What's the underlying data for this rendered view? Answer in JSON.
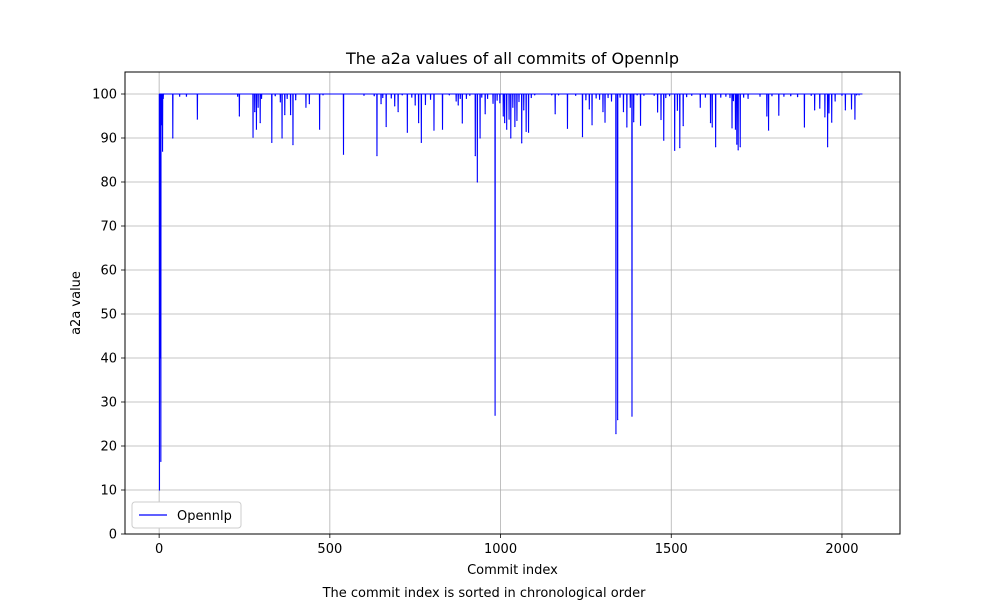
{
  "chart_data": {
    "type": "line",
    "title": "The a2a values of all commits of Opennlp",
    "xlabel": "Commit index",
    "ylabel": "a2a value",
    "caption": "The commit index is sorted in chronological order",
    "xlim": [
      -100,
      2170
    ],
    "ylim": [
      0,
      105
    ],
    "xticks": [
      0,
      500,
      1000,
      1500,
      2000
    ],
    "yticks": [
      0,
      10,
      20,
      30,
      40,
      50,
      60,
      70,
      80,
      90,
      100
    ],
    "grid": true,
    "legend_position": "lower-left",
    "series": [
      {
        "name": "Opennlp",
        "color": "#0000ff",
        "baseline": 100,
        "x_end": 2060,
        "dips": [
          [
            1,
            10
          ],
          [
            3,
            40
          ],
          [
            5,
            16.5
          ],
          [
            7,
            93
          ],
          [
            10,
            87
          ],
          [
            12,
            99
          ],
          [
            14,
            100
          ],
          [
            40,
            90
          ],
          [
            60,
            99.5
          ],
          [
            80,
            99.5
          ],
          [
            112,
            94.3
          ],
          [
            230,
            99.5
          ],
          [
            235,
            95
          ],
          [
            275,
            90.2
          ],
          [
            280,
            96
          ],
          [
            285,
            92
          ],
          [
            290,
            97
          ],
          [
            296,
            93.5
          ],
          [
            300,
            99
          ],
          [
            330,
            89
          ],
          [
            340,
            99.6
          ],
          [
            355,
            98.2
          ],
          [
            360,
            90
          ],
          [
            368,
            95.3
          ],
          [
            375,
            99
          ],
          [
            385,
            95.3
          ],
          [
            392,
            88.5
          ],
          [
            400,
            98.7
          ],
          [
            430,
            97
          ],
          [
            440,
            97.8
          ],
          [
            470,
            92
          ],
          [
            480,
            99.8
          ],
          [
            540,
            86.3
          ],
          [
            600,
            99.7
          ],
          [
            630,
            99.6
          ],
          [
            638,
            86
          ],
          [
            650,
            97.8
          ],
          [
            655,
            99.2
          ],
          [
            665,
            92.6
          ],
          [
            680,
            99.1
          ],
          [
            690,
            97.3
          ],
          [
            700,
            96
          ],
          [
            712,
            99.8
          ],
          [
            727,
            91.3
          ],
          [
            740,
            99.3
          ],
          [
            750,
            97.5
          ],
          [
            760,
            93.5
          ],
          [
            768,
            89
          ],
          [
            780,
            97.6
          ],
          [
            795,
            98.8
          ],
          [
            805,
            91.8
          ],
          [
            830,
            92
          ],
          [
            850,
            99.8
          ],
          [
            870,
            98.4
          ],
          [
            876,
            97.5
          ],
          [
            882,
            99
          ],
          [
            888,
            93.4
          ],
          [
            900,
            99
          ],
          [
            910,
            99.7
          ],
          [
            926,
            86
          ],
          [
            932,
            80
          ],
          [
            940,
            90
          ],
          [
            945,
            99.3
          ],
          [
            955,
            95.5
          ],
          [
            962,
            99
          ],
          [
            978,
            97.9
          ],
          [
            984,
            27
          ],
          [
            990,
            98.6
          ],
          [
            998,
            98
          ],
          [
            1008,
            95
          ],
          [
            1012,
            93.5
          ],
          [
            1018,
            92
          ],
          [
            1025,
            94.3
          ],
          [
            1030,
            90
          ],
          [
            1036,
            97
          ],
          [
            1042,
            92.6
          ],
          [
            1048,
            94
          ],
          [
            1054,
            98.3
          ],
          [
            1062,
            88.9
          ],
          [
            1068,
            96.4
          ],
          [
            1075,
            91.5
          ],
          [
            1082,
            91.3
          ],
          [
            1090,
            99.2
          ],
          [
            1100,
            99.8
          ],
          [
            1150,
            99.8
          ],
          [
            1160,
            95.5
          ],
          [
            1170,
            99.8
          ],
          [
            1196,
            92.2
          ],
          [
            1220,
            99.7
          ],
          [
            1240,
            90.3
          ],
          [
            1250,
            98.7
          ],
          [
            1260,
            96.6
          ],
          [
            1268,
            93
          ],
          [
            1280,
            99.1
          ],
          [
            1290,
            98.8
          ],
          [
            1300,
            96
          ],
          [
            1306,
            93.6
          ],
          [
            1315,
            99.2
          ],
          [
            1325,
            98.4
          ],
          [
            1338,
            22.8
          ],
          [
            1343,
            26
          ],
          [
            1350,
            99.3
          ],
          [
            1360,
            96
          ],
          [
            1370,
            92.5
          ],
          [
            1380,
            97
          ],
          [
            1385,
            26.8
          ],
          [
            1390,
            93.7
          ],
          [
            1400,
            99.8
          ],
          [
            1410,
            92.9
          ],
          [
            1420,
            99.7
          ],
          [
            1450,
            99.7
          ],
          [
            1460,
            95.9
          ],
          [
            1470,
            94.2
          ],
          [
            1478,
            89.5
          ],
          [
            1484,
            99.2
          ],
          [
            1495,
            99.6
          ],
          [
            1510,
            87.2
          ],
          [
            1518,
            96.3
          ],
          [
            1525,
            87.8
          ],
          [
            1535,
            92.8
          ],
          [
            1545,
            99.4
          ],
          [
            1560,
            99.7
          ],
          [
            1585,
            97
          ],
          [
            1600,
            99.3
          ],
          [
            1615,
            93.5
          ],
          [
            1620,
            92.5
          ],
          [
            1630,
            88
          ],
          [
            1645,
            99.3
          ],
          [
            1660,
            99.5
          ],
          [
            1672,
            99.2
          ],
          [
            1678,
            92.3
          ],
          [
            1682,
            98.5
          ],
          [
            1688,
            92
          ],
          [
            1692,
            88.6
          ],
          [
            1696,
            87.3
          ],
          [
            1702,
            88
          ],
          [
            1712,
            99.3
          ],
          [
            1725,
            99
          ],
          [
            1760,
            99.5
          ],
          [
            1780,
            95
          ],
          [
            1785,
            91.8
          ],
          [
            1795,
            99.6
          ],
          [
            1815,
            95.2
          ],
          [
            1830,
            99.5
          ],
          [
            1850,
            99.6
          ],
          [
            1870,
            99.4
          ],
          [
            1890,
            92.5
          ],
          [
            1910,
            99.7
          ],
          [
            1920,
            96.4
          ],
          [
            1935,
            96.8
          ],
          [
            1950,
            94.8
          ],
          [
            1958,
            88
          ],
          [
            1962,
            95.7
          ],
          [
            1970,
            93.6
          ],
          [
            1980,
            98.4
          ],
          [
            2000,
            99.7
          ],
          [
            2010,
            96.4
          ],
          [
            2028,
            96.6
          ],
          [
            2038,
            94.3
          ],
          [
            2043,
            99.8
          ],
          [
            2050,
            99.9
          ]
        ]
      }
    ]
  }
}
